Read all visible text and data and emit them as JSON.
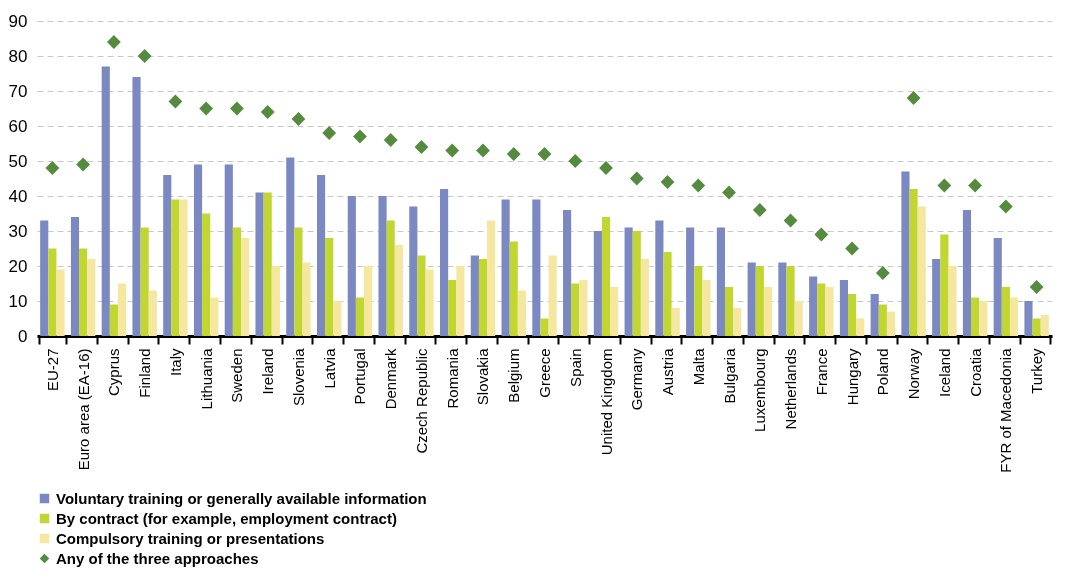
{
  "chart_data": {
    "type": "bar",
    "categories": [
      "EU-27",
      "Euro area (EA-16)",
      "Cyprus",
      "Finland",
      "Italy",
      "Lithuania",
      "Sweden",
      "Ireland",
      "Slovenia",
      "Latvia",
      "Portugal",
      "Denmark",
      "Czech Republic",
      "Romania",
      "Slovakia",
      "Belgium",
      "Greece",
      "Spain",
      "United Kingdom",
      "Germany",
      "Austria",
      "Malta",
      "Bulgaria",
      "Luxembourg",
      "Netherlands",
      "France",
      "Hungary",
      "Poland",
      "Norway",
      "Iceland",
      "Croatia",
      "FYR of Macedonia",
      "Turkey"
    ],
    "series": [
      {
        "name": "Voluntary training or generally available information",
        "type": "bar",
        "color": "#7b88c2",
        "values": [
          33,
          34,
          77,
          74,
          46,
          49,
          49,
          41,
          51,
          46,
          40,
          40,
          37,
          42,
          23,
          39,
          39,
          36,
          30,
          31,
          33,
          31,
          31,
          21,
          21,
          17,
          16,
          12,
          47,
          22,
          36,
          28,
          10
        ]
      },
      {
        "name": "By contract (for example, employment contract)",
        "type": "bar",
        "color": "#c2d631",
        "values": [
          25,
          25,
          9,
          31,
          39,
          35,
          31,
          41,
          31,
          28,
          11,
          33,
          23,
          16,
          22,
          27,
          5,
          15,
          34,
          30,
          24,
          20,
          14,
          20,
          20,
          15,
          12,
          9,
          42,
          29,
          11,
          14,
          5
        ]
      },
      {
        "name": "Compulsory training or presentations",
        "type": "bar",
        "color": "#f5e6a0",
        "values": [
          19,
          22,
          15,
          13,
          39,
          11,
          28,
          20,
          21,
          10,
          20,
          26,
          19,
          20,
          33,
          13,
          23,
          16,
          14,
          22,
          8,
          16,
          8,
          14,
          10,
          14,
          5,
          7,
          37,
          20,
          10,
          11,
          6
        ]
      },
      {
        "name": "Any of the three approaches",
        "type": "scatter",
        "marker": "diamond",
        "color": "#558b3f",
        "values": [
          48,
          49,
          84,
          80,
          67,
          65,
          65,
          64,
          62,
          58,
          57,
          56,
          54,
          53,
          53,
          52,
          52,
          50,
          48,
          45,
          44,
          43,
          41,
          36,
          33,
          29,
          25,
          18,
          68,
          43,
          43,
          37,
          14
        ]
      }
    ],
    "ylim": [
      0,
      90
    ],
    "yticks": [
      0,
      10,
      20,
      30,
      40,
      50,
      60,
      70,
      80,
      90
    ],
    "grid": "y",
    "legend": "bottom"
  }
}
